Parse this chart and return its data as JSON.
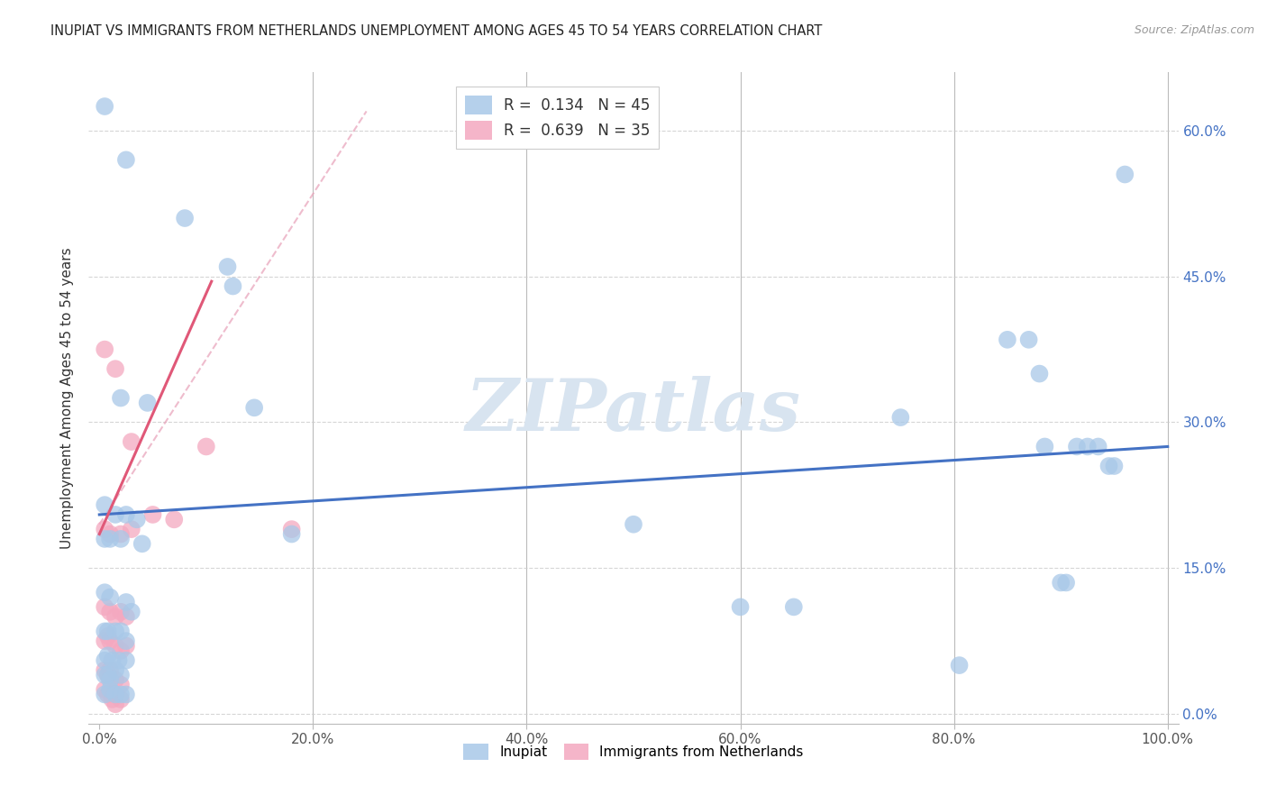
{
  "title": "INUPIAT VS IMMIGRANTS FROM NETHERLANDS UNEMPLOYMENT AMONG AGES 45 TO 54 YEARS CORRELATION CHART",
  "source": "Source: ZipAtlas.com",
  "ylabel": "Unemployment Among Ages 45 to 54 years",
  "inupiat_scatter": [
    [
      0.5,
      62.5
    ],
    [
      2.5,
      57.0
    ],
    [
      8.0,
      51.0
    ],
    [
      12.0,
      46.0
    ],
    [
      12.5,
      44.0
    ],
    [
      2.0,
      32.5
    ],
    [
      4.5,
      32.0
    ],
    [
      14.5,
      31.5
    ],
    [
      0.5,
      21.5
    ],
    [
      1.5,
      20.5
    ],
    [
      2.5,
      20.5
    ],
    [
      3.5,
      20.0
    ],
    [
      0.5,
      18.0
    ],
    [
      1.0,
      18.0
    ],
    [
      2.0,
      18.0
    ],
    [
      4.0,
      17.5
    ],
    [
      18.0,
      18.5
    ],
    [
      0.5,
      12.5
    ],
    [
      1.0,
      12.0
    ],
    [
      2.5,
      11.5
    ],
    [
      3.0,
      10.5
    ],
    [
      0.5,
      8.5
    ],
    [
      0.8,
      8.5
    ],
    [
      1.5,
      8.5
    ],
    [
      2.0,
      8.5
    ],
    [
      2.5,
      7.5
    ],
    [
      0.5,
      5.5
    ],
    [
      0.8,
      6.0
    ],
    [
      1.2,
      5.5
    ],
    [
      1.8,
      5.5
    ],
    [
      2.5,
      5.5
    ],
    [
      0.5,
      4.0
    ],
    [
      0.8,
      4.0
    ],
    [
      1.0,
      3.5
    ],
    [
      1.5,
      4.5
    ],
    [
      2.0,
      4.0
    ],
    [
      0.5,
      2.0
    ],
    [
      1.0,
      2.5
    ],
    [
      1.5,
      2.0
    ],
    [
      2.0,
      2.0
    ],
    [
      2.5,
      2.0
    ],
    [
      50.0,
      19.5
    ],
    [
      60.0,
      11.0
    ],
    [
      65.0,
      11.0
    ],
    [
      75.0,
      30.5
    ],
    [
      80.5,
      5.0
    ],
    [
      85.0,
      38.5
    ],
    [
      87.0,
      38.5
    ],
    [
      88.0,
      35.0
    ],
    [
      88.5,
      27.5
    ],
    [
      90.0,
      13.5
    ],
    [
      90.5,
      13.5
    ],
    [
      91.5,
      27.5
    ],
    [
      92.5,
      27.5
    ],
    [
      93.5,
      27.5
    ],
    [
      94.5,
      25.5
    ],
    [
      95.0,
      25.5
    ],
    [
      96.0,
      55.5
    ]
  ],
  "netherlands_scatter": [
    [
      0.5,
      37.5
    ],
    [
      1.5,
      35.5
    ],
    [
      3.0,
      28.0
    ],
    [
      5.0,
      20.5
    ],
    [
      7.0,
      20.0
    ],
    [
      0.5,
      19.0
    ],
    [
      1.0,
      18.5
    ],
    [
      2.0,
      18.5
    ],
    [
      3.0,
      19.0
    ],
    [
      0.5,
      11.0
    ],
    [
      1.0,
      10.5
    ],
    [
      1.5,
      10.0
    ],
    [
      2.0,
      10.5
    ],
    [
      2.5,
      10.0
    ],
    [
      0.5,
      7.5
    ],
    [
      0.8,
      8.0
    ],
    [
      1.0,
      7.5
    ],
    [
      1.5,
      7.0
    ],
    [
      2.0,
      6.5
    ],
    [
      2.5,
      7.0
    ],
    [
      0.5,
      4.5
    ],
    [
      0.8,
      4.0
    ],
    [
      1.0,
      4.5
    ],
    [
      1.5,
      3.5
    ],
    [
      2.0,
      3.0
    ],
    [
      0.5,
      2.5
    ],
    [
      0.8,
      2.0
    ],
    [
      1.2,
      1.5
    ],
    [
      1.5,
      1.0
    ],
    [
      2.0,
      1.5
    ],
    [
      10.0,
      27.5
    ],
    [
      18.0,
      19.0
    ]
  ],
  "inupiat_color": "#a8c8e8",
  "netherlands_color": "#f4a8c0",
  "inupiat_line_color": "#4472c4",
  "netherlands_line_color": "#e05878",
  "netherlands_dashed_color": "#e8a0b8",
  "background_color": "#ffffff",
  "watermark": "ZIPatlas",
  "watermark_color": "#d8e4f0",
  "x_min": 0,
  "x_max": 100,
  "y_min": 0,
  "y_max": 65,
  "x_ticks": [
    0,
    20,
    40,
    60,
    80,
    100
  ],
  "x_tick_labels": [
    "0.0%",
    "20.0%",
    "40.0%",
    "60.0%",
    "80.0%",
    "100.0%"
  ],
  "y_ticks": [
    0,
    15,
    30,
    45,
    60
  ],
  "y_tick_labels": [
    "0.0%",
    "15.0%",
    "30.0%",
    "45.0%",
    "60.0%"
  ],
  "inupiat_line": [
    [
      0,
      100
    ],
    [
      20.5,
      27.5
    ]
  ],
  "neth_solid_line": [
    [
      0,
      10.5
    ],
    [
      18.5,
      44.5
    ]
  ],
  "neth_dashed_line": [
    [
      0,
      25
    ],
    [
      19.5,
      62.0
    ]
  ]
}
